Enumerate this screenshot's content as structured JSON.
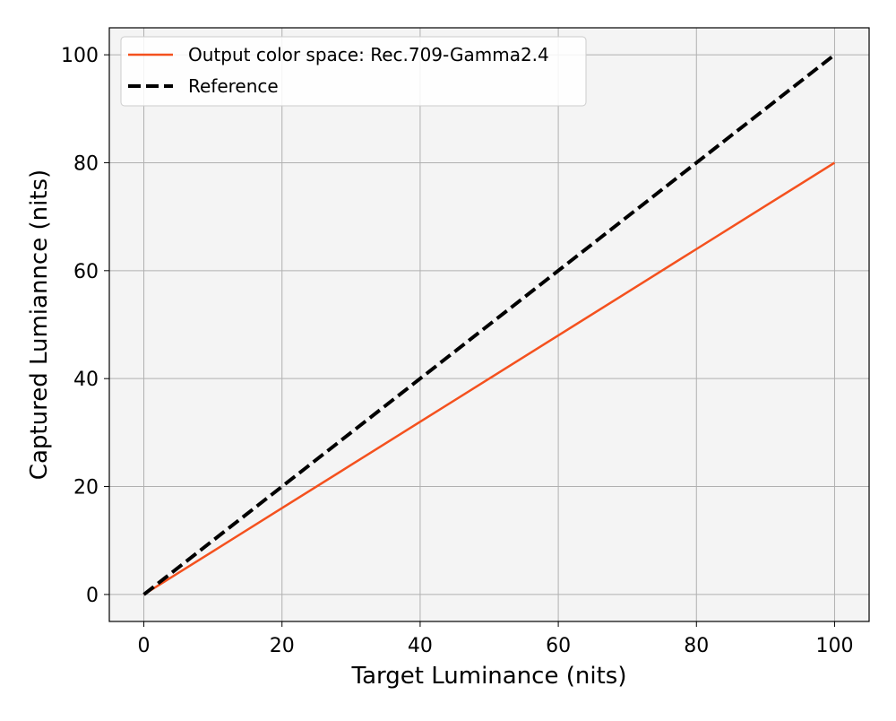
{
  "chart_data": {
    "type": "line",
    "title": "",
    "xlabel": "Target Luminance (nits)",
    "ylabel": "Captured Lumiannce (nits)",
    "xlim": [
      -5,
      105
    ],
    "ylim": [
      -5,
      105
    ],
    "xticks": [
      0,
      20,
      40,
      60,
      80,
      100
    ],
    "yticks": [
      0,
      20,
      40,
      60,
      80,
      100
    ],
    "grid": true,
    "legend_position": "top-left",
    "plot_background": "#f4f4f4",
    "grid_color": "#b0b0b0",
    "series": [
      {
        "name": "Output color space: Rec.709-Gamma2.4",
        "color": "#f4511e",
        "style": "solid",
        "x": [
          0,
          10,
          20,
          30,
          40,
          50,
          60,
          70,
          80,
          90,
          100
        ],
        "y": [
          0,
          8,
          16,
          24,
          32,
          40,
          48,
          56,
          64,
          72,
          80
        ]
      },
      {
        "name": "Reference",
        "color": "#000000",
        "style": "dashed",
        "x": [
          0,
          100
        ],
        "y": [
          0,
          100
        ]
      }
    ]
  }
}
